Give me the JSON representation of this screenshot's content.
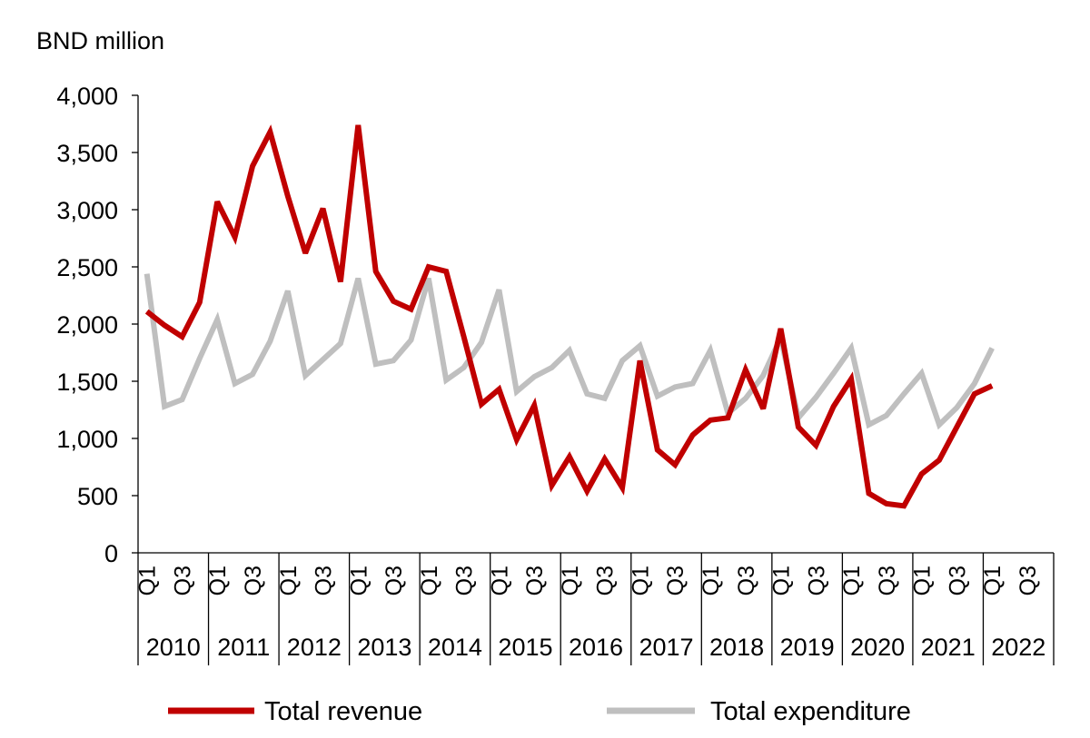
{
  "chart_data": {
    "type": "line",
    "ylabel": "BND million",
    "ylim": [
      0,
      4000
    ],
    "yticks": [
      "0",
      "500",
      "1,000",
      "1,500",
      "2,000",
      "2,500",
      "3,000",
      "3,500",
      "4,000"
    ],
    "yticks_values": [
      0,
      500,
      1000,
      1500,
      2000,
      2500,
      3000,
      3500,
      4000
    ],
    "quarter_labels": [
      "Q1",
      "Q3"
    ],
    "years": [
      "2010",
      "2011",
      "2012",
      "2013",
      "2014",
      "2015",
      "2016",
      "2017",
      "2018",
      "2019",
      "2020",
      "2021",
      "2022"
    ],
    "quarters_per_year": 4,
    "grid": false,
    "legend_position": "bottom",
    "series": [
      {
        "name": "Total revenue",
        "color": "#C00000",
        "values": [
          2110,
          1990,
          1890,
          2190,
          3070,
          2760,
          3380,
          3680,
          3120,
          2620,
          3010,
          2370,
          3740,
          2460,
          2200,
          2130,
          2500,
          2460,
          1890,
          1300,
          1430,
          990,
          1290,
          590,
          840,
          540,
          820,
          570,
          1680,
          900,
          770,
          1030,
          1160,
          1180,
          1600,
          1260,
          1960,
          1100,
          940,
          1280,
          1520,
          520,
          430,
          410,
          690,
          810,
          1100,
          1390,
          1460
        ]
      },
      {
        "name": "Total expenditure",
        "color": "#BFBFBF",
        "values": [
          2440,
          1280,
          1340,
          1700,
          2040,
          1480,
          1560,
          1850,
          2290,
          1550,
          1690,
          1830,
          2400,
          1650,
          1680,
          1860,
          2400,
          1510,
          1620,
          1840,
          2300,
          1410,
          1540,
          1620,
          1770,
          1390,
          1350,
          1680,
          1810,
          1370,
          1450,
          1480,
          1770,
          1220,
          1350,
          1550,
          1880,
          1180,
          1360,
          1570,
          1790,
          1120,
          1200,
          1390,
          1570,
          1120,
          1270,
          1480,
          1790
        ]
      }
    ]
  }
}
